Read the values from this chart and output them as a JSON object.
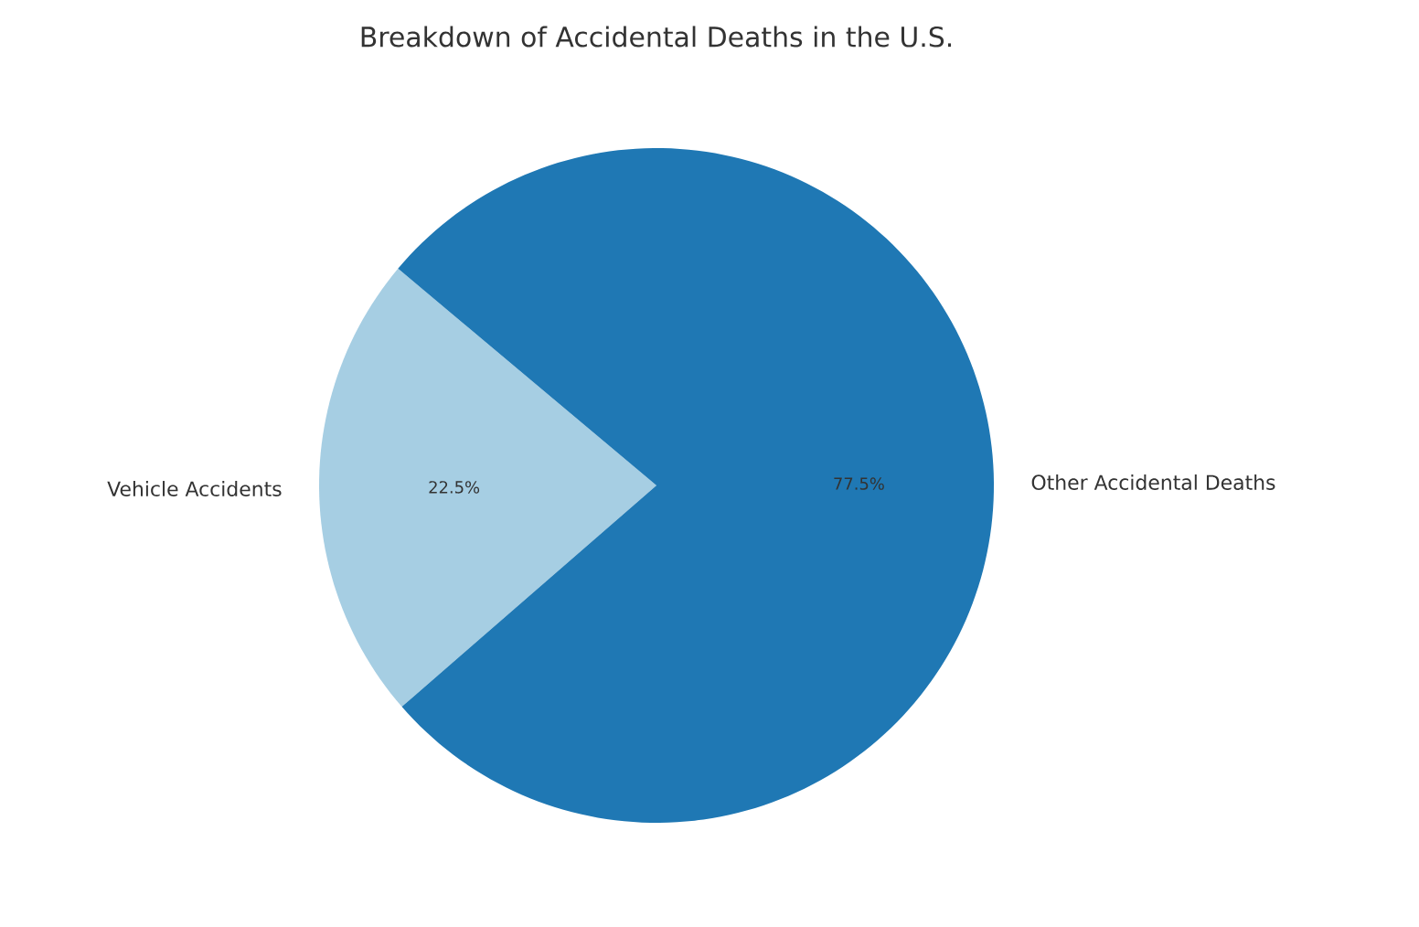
{
  "chart_data": {
    "type": "pie",
    "title": "Breakdown of Accidental Deaths in the U.S.",
    "categories": [
      "Vehicle Accidents",
      "Other Accidental Deaths"
    ],
    "values": [
      22.5,
      77.5
    ],
    "colors": [
      "#a6cee3",
      "#1f78b4"
    ],
    "value_labels": [
      "22.5%",
      "77.5%"
    ]
  }
}
